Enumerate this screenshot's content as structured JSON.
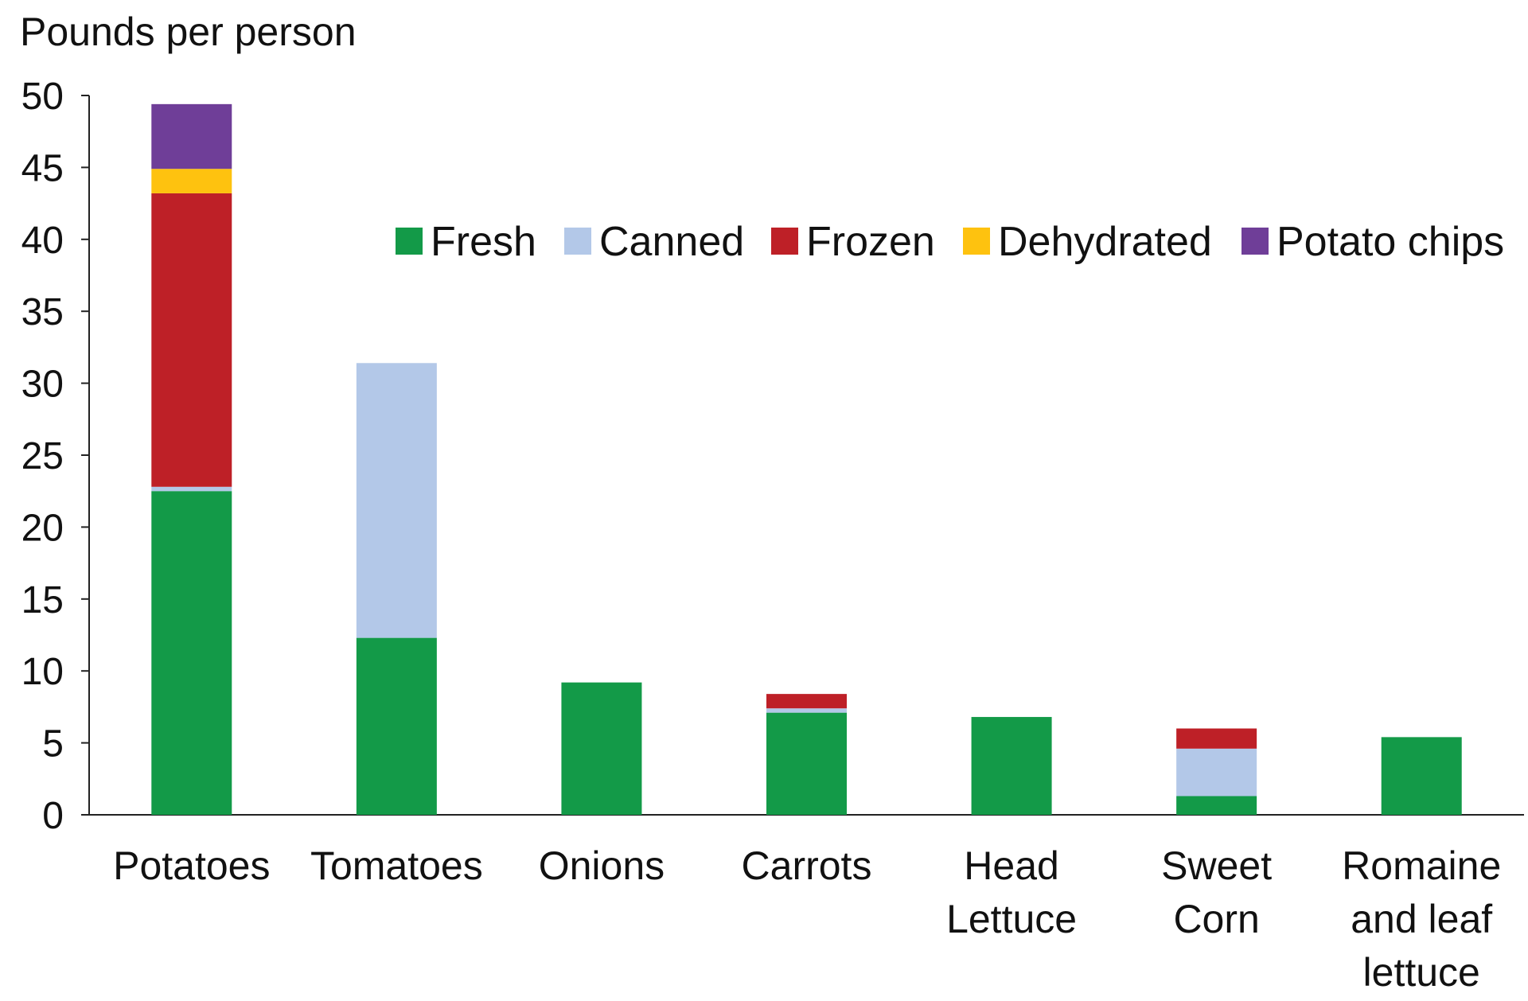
{
  "chart_data": {
    "type": "bar",
    "stacked": true,
    "title": "",
    "ylabel": "Pounds per person",
    "xlabel": "",
    "ylim": [
      0,
      50
    ],
    "yticks": [
      0,
      5,
      10,
      15,
      20,
      25,
      30,
      35,
      40,
      45,
      50
    ],
    "grid": false,
    "legend_position": "top-right",
    "categories": [
      [
        "Potatoes"
      ],
      [
        "Tomatoes"
      ],
      [
        "Onions"
      ],
      [
        "Carrots"
      ],
      [
        "Head",
        "Lettuce"
      ],
      [
        "Sweet",
        "Corn"
      ],
      [
        "Romaine",
        "and leaf",
        "lettuce"
      ]
    ],
    "series": [
      {
        "name": "Fresh",
        "color": "#139a48",
        "values": [
          22.5,
          12.3,
          9.2,
          7.1,
          6.8,
          1.3,
          5.4
        ]
      },
      {
        "name": "Canned",
        "color": "#b3c8e8",
        "values": [
          0.3,
          19.1,
          0,
          0.3,
          0,
          3.3,
          0
        ]
      },
      {
        "name": "Frozen",
        "color": "#be2027",
        "values": [
          20.4,
          0,
          0,
          1.0,
          0,
          1.4,
          0
        ]
      },
      {
        "name": "Dehydrated",
        "color": "#fec20f",
        "values": [
          1.7,
          0,
          0,
          0,
          0,
          0,
          0
        ]
      },
      {
        "name": "Potato chips",
        "color": "#6f3e98",
        "values": [
          4.5,
          0,
          0,
          0,
          0,
          0,
          0
        ]
      }
    ]
  }
}
